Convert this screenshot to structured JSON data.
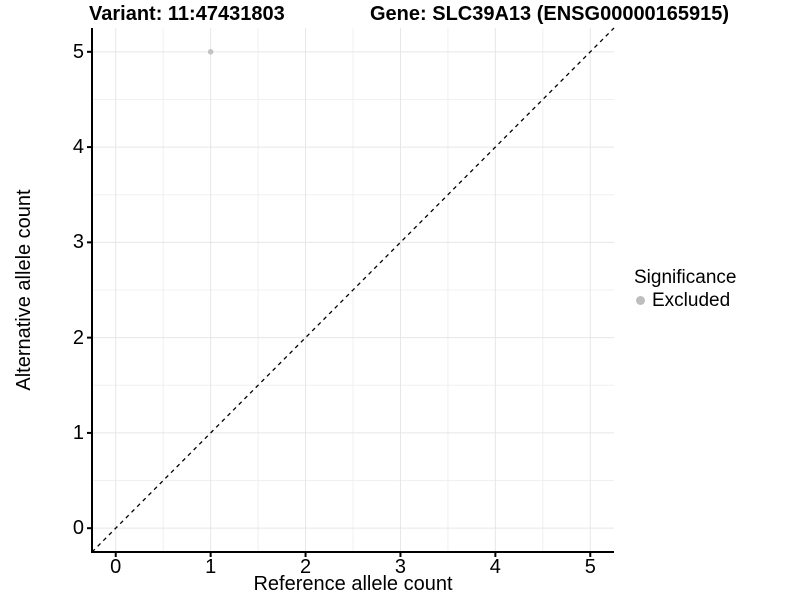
{
  "titles": {
    "variant": "Variant: 11:47431803",
    "gene": "Gene: SLC39A13 (ENSG00000165915)"
  },
  "chart_data": {
    "type": "scatter",
    "title_left": "Variant: 11:47431803",
    "title_right": "Gene: SLC39A13 (ENSG00000165915)",
    "xlabel": "Reference allele count",
    "ylabel": "Alternative allele count",
    "xlim": [
      -0.25,
      5.25
    ],
    "ylim": [
      -0.25,
      5.25
    ],
    "xticks": [
      0,
      1,
      2,
      3,
      4,
      5
    ],
    "yticks": [
      0,
      1,
      2,
      3,
      4,
      5
    ],
    "minor_xticks": [
      0.5,
      1.5,
      2.5,
      3.5,
      4.5
    ],
    "minor_yticks": [
      0.5,
      1.5,
      2.5,
      3.5,
      4.5
    ],
    "grid": true,
    "points": [
      {
        "x": 1,
        "y": 5,
        "series": "Excluded"
      }
    ],
    "reference_line": {
      "type": "identity",
      "style": "dashed",
      "from": [
        -0.25,
        -0.25
      ],
      "to": [
        5.25,
        5.25
      ]
    },
    "legend": {
      "title": "Significance",
      "position": "right",
      "items": [
        {
          "label": "Excluded",
          "color": "#bebebe",
          "marker": "circle"
        }
      ]
    },
    "colors": {
      "point": "#c3c3c3",
      "grid_major": "#e6e6e6",
      "grid_minor": "#f0f0f0",
      "axis": "#000000",
      "reference_line": "#000000",
      "background": "#ffffff"
    }
  }
}
